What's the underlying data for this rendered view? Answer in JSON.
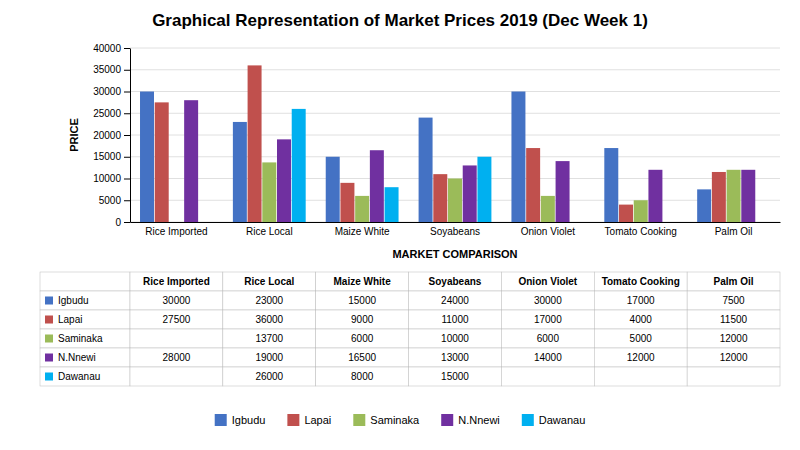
{
  "chart_data": {
    "type": "bar",
    "title": "Graphical Representation of Market Prices 2019 (Dec Week 1)",
    "xlabel": "MARKET COMPARISON",
    "ylabel": "PRICE",
    "categories": [
      "Rice Imported",
      "Rice Local",
      "Maize White",
      "Soyabeans",
      "Onion Violet",
      "Tomato Cooking",
      "Palm Oil"
    ],
    "series": [
      {
        "name": "Igbudu",
        "color": "#4472C4",
        "values": [
          30000,
          23000,
          15000,
          24000,
          30000,
          17000,
          7500
        ]
      },
      {
        "name": "Lapai",
        "color": "#C0504D",
        "values": [
          27500,
          36000,
          9000,
          11000,
          17000,
          4000,
          11500
        ]
      },
      {
        "name": "Saminaka",
        "color": "#9BBB59",
        "values": [
          0,
          13700,
          6000,
          10000,
          6000,
          5000,
          12000
        ]
      },
      {
        "name": "N.Nnewi",
        "color": "#7030A0",
        "values": [
          28000,
          19000,
          16500,
          13000,
          14000,
          12000,
          12000
        ]
      },
      {
        "name": "Dawanau",
        "color": "#00B0F0",
        "values": [
          0,
          26000,
          8000,
          15000,
          0,
          0,
          0
        ]
      }
    ],
    "ylim": [
      0,
      40000
    ],
    "yticks": [
      0,
      5000,
      10000,
      15000,
      20000,
      25000,
      30000,
      35000,
      40000
    ],
    "grid": true,
    "legend": "bottom"
  }
}
